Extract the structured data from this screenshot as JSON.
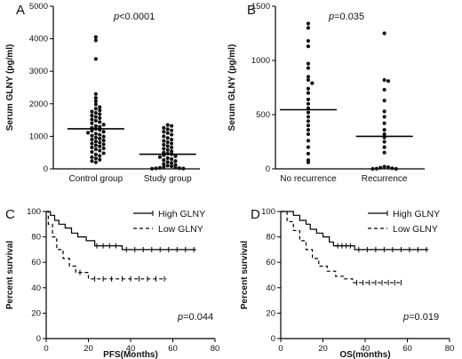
{
  "chart_data": [
    {
      "panel": "A",
      "type": "scatter",
      "ylabel": "Serum GLNY (pg/ml)",
      "ylim": [
        0,
        5000
      ],
      "yticks": [
        0,
        1000,
        2000,
        3000,
        4000,
        5000
      ],
      "categories": [
        "Control group",
        "Study group"
      ],
      "p_prefix": "p",
      "p_suffix": "<0.0001",
      "medians": [
        1230,
        450
      ],
      "groups": [
        {
          "category": "Control group",
          "values": [
            4050,
            3950,
            3380,
            2300,
            2180,
            2080,
            1980,
            1900,
            1850,
            1800,
            1760,
            1720,
            1680,
            1640,
            1600,
            1560,
            1520,
            1480,
            1440,
            1400,
            1360,
            1320,
            1290,
            1260,
            1230,
            1200,
            1170,
            1140,
            1110,
            1080,
            1050,
            1020,
            990,
            960,
            930,
            900,
            870,
            840,
            810,
            780,
            750,
            720,
            690,
            660,
            630,
            600,
            560,
            520,
            480,
            440,
            400,
            360,
            320,
            280,
            240,
            200
          ]
        },
        {
          "category": "Study group",
          "values": [
            1350,
            1320,
            1260,
            1220,
            1180,
            1140,
            1100,
            1050,
            1000,
            950,
            900,
            860,
            820,
            780,
            740,
            700,
            660,
            620,
            580,
            540,
            500,
            470,
            450,
            420,
            390,
            360,
            330,
            300,
            270,
            240,
            210,
            180,
            150,
            120,
            100,
            80,
            60,
            40,
            30,
            20,
            15,
            10,
            5
          ]
        }
      ]
    },
    {
      "panel": "B",
      "type": "scatter",
      "ylabel": "Serum GLNY (pg/ml)",
      "ylim": [
        0,
        1500
      ],
      "yticks": [
        0,
        500,
        1000,
        1500
      ],
      "categories": [
        "No recurrence",
        "Recurrence"
      ],
      "p_prefix": "p",
      "p_suffix": "=0.035",
      "medians": [
        545,
        300
      ],
      "groups": [
        {
          "category": "No recurrence",
          "values": [
            1340,
            1300,
            1180,
            1130,
            970,
            930,
            850,
            820,
            790,
            740,
            700,
            640,
            600,
            560,
            520,
            480,
            440,
            400,
            360,
            320,
            260,
            200,
            140,
            80,
            60
          ]
        },
        {
          "category": "Recurrence",
          "values": [
            1250,
            820,
            810,
            730,
            630,
            530,
            480,
            420,
            360,
            320,
            290,
            250,
            200,
            150,
            20,
            15,
            10,
            5,
            2,
            0,
            0
          ]
        }
      ]
    },
    {
      "panel": "C",
      "type": "line",
      "xlabel": "PFS(Months)",
      "ylabel": "Percent survival",
      "xlim": [
        0,
        80
      ],
      "ylim": [
        0,
        100
      ],
      "xticks": [
        0,
        20,
        40,
        60,
        80
      ],
      "yticks": [
        0,
        20,
        40,
        60,
        80,
        100
      ],
      "p_prefix": "p",
      "p_suffix": "=0.044",
      "series": [
        {
          "name": "High GLNY",
          "style": "solid",
          "steps": [
            [
              0,
              100
            ],
            [
              2,
              97
            ],
            [
              4,
              93
            ],
            [
              6,
              90
            ],
            [
              9,
              87
            ],
            [
              12,
              83
            ],
            [
              15,
              80
            ],
            [
              19,
              77
            ],
            [
              23,
              73
            ],
            [
              36,
              70
            ],
            [
              71,
              70
            ]
          ],
          "censored": [
            [
              24,
              73
            ],
            [
              27,
              73
            ],
            [
              30,
              73
            ],
            [
              33,
              73
            ],
            [
              38,
              70
            ],
            [
              42,
              70
            ],
            [
              46,
              70
            ],
            [
              50,
              70
            ],
            [
              54,
              70
            ],
            [
              58,
              70
            ],
            [
              62,
              70
            ],
            [
              66,
              70
            ],
            [
              70,
              70
            ]
          ]
        },
        {
          "name": "Low GLNY",
          "style": "dashed",
          "steps": [
            [
              0,
              100
            ],
            [
              1,
              90
            ],
            [
              3,
              80
            ],
            [
              5,
              70
            ],
            [
              8,
              63
            ],
            [
              11,
              57
            ],
            [
              14,
              52
            ],
            [
              20,
              47
            ],
            [
              57,
              47
            ]
          ],
          "censored": [
            [
              16,
              52
            ],
            [
              23,
              47
            ],
            [
              27,
              47
            ],
            [
              31,
              47
            ],
            [
              36,
              47
            ],
            [
              40,
              47
            ],
            [
              44,
              47
            ],
            [
              48,
              47
            ],
            [
              52,
              47
            ],
            [
              56,
              47
            ]
          ]
        }
      ]
    },
    {
      "panel": "D",
      "type": "line",
      "xlabel": "OS(months)",
      "ylabel": "Percent survival",
      "xlim": [
        0,
        80
      ],
      "ylim": [
        0,
        100
      ],
      "xticks": [
        0,
        20,
        40,
        60,
        80
      ],
      "yticks": [
        0,
        20,
        40,
        60,
        80,
        100
      ],
      "p_prefix": "p",
      "p_suffix": "=0.019",
      "series": [
        {
          "name": "High GLNY",
          "style": "solid",
          "steps": [
            [
              0,
              100
            ],
            [
              6,
              97
            ],
            [
              9,
              93
            ],
            [
              12,
              90
            ],
            [
              14,
              86
            ],
            [
              17,
              83
            ],
            [
              20,
              80
            ],
            [
              23,
              76
            ],
            [
              25,
              73
            ],
            [
              35,
              70
            ],
            [
              70,
              70
            ]
          ],
          "censored": [
            [
              27,
              73
            ],
            [
              29,
              73
            ],
            [
              31,
              73
            ],
            [
              33,
              73
            ],
            [
              37,
              70
            ],
            [
              41,
              70
            ],
            [
              45,
              70
            ],
            [
              49,
              70
            ],
            [
              53,
              70
            ],
            [
              57,
              70
            ],
            [
              61,
              70
            ],
            [
              65,
              70
            ],
            [
              69,
              70
            ]
          ]
        },
        {
          "name": "Low GLNY",
          "style": "dashed",
          "steps": [
            [
              0,
              100
            ],
            [
              3,
              92
            ],
            [
              6,
              85
            ],
            [
              9,
              77
            ],
            [
              12,
              70
            ],
            [
              15,
              63
            ],
            [
              18,
              57
            ],
            [
              22,
              53
            ],
            [
              26,
              49
            ],
            [
              30,
              47
            ],
            [
              34,
              44
            ],
            [
              57,
              44
            ]
          ],
          "censored": [
            [
              36,
              44
            ],
            [
              39,
              44
            ],
            [
              42,
              44
            ],
            [
              45,
              44
            ],
            [
              48,
              44
            ],
            [
              51,
              44
            ],
            [
              54,
              44
            ],
            [
              57,
              44
            ]
          ]
        }
      ]
    }
  ]
}
